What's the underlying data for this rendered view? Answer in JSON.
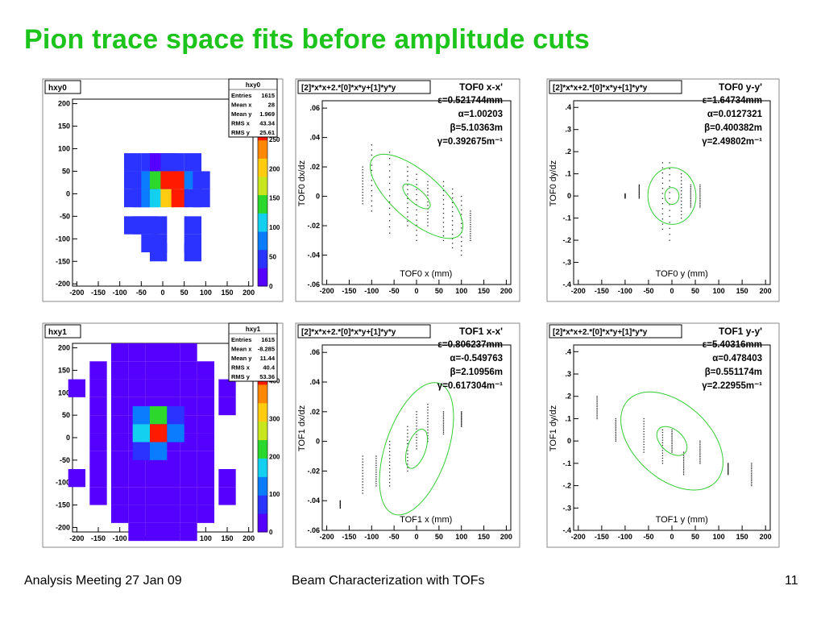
{
  "slide": {
    "title": "Pion trace space fits before amplitude cuts",
    "footer_left": "Analysis Meeting 27 Jan 09",
    "footer_center": "Beam Characterization with TOFs",
    "footer_right": "11"
  },
  "colors": {
    "title": "#1cc41c",
    "ellipse": "#33cc33",
    "palette": [
      "#5500ff",
      "#2a33ff",
      "#0a7dff",
      "#14d0f0",
      "#2bd82b",
      "#c8e61e",
      "#ffcc11",
      "#ff8800",
      "#ff1a00"
    ]
  },
  "chart_data": [
    {
      "type": "heatmap",
      "name": "hxy0",
      "stats": {
        "title": "hxy0",
        "rows": [
          [
            "Entries",
            "1615"
          ],
          [
            "Mean x",
            "28"
          ],
          [
            "Mean y",
            "1.969"
          ],
          [
            "RMS x",
            "43.34"
          ],
          [
            "RMS y",
            "25.61"
          ]
        ]
      },
      "xlim": [
        -210,
        210
      ],
      "ylim": [
        -205,
        210
      ],
      "xticks": [
        -200,
        -150,
        -100,
        -50,
        0,
        50,
        100,
        150,
        200
      ],
      "yticks": [
        -200,
        -150,
        -100,
        -50,
        0,
        50,
        100,
        150,
        200
      ],
      "bin": 50,
      "zmax": 280,
      "zticks": [
        0,
        50,
        100,
        150,
        200,
        250
      ],
      "cells": [
        [
          -70,
          70,
          40
        ],
        [
          -30,
          70,
          40
        ],
        [
          -10,
          70,
          30
        ],
        [
          15,
          70,
          40
        ],
        [
          30,
          70,
          40
        ],
        [
          70,
          70,
          40
        ],
        [
          -70,
          30,
          40
        ],
        [
          -50,
          30,
          60
        ],
        [
          -30,
          30,
          70
        ],
        [
          -10,
          30,
          130
        ],
        [
          15,
          30,
          260
        ],
        [
          40,
          30,
          270
        ],
        [
          70,
          30,
          80
        ],
        [
          90,
          30,
          40
        ],
        [
          -70,
          -10,
          40
        ],
        [
          -50,
          -10,
          60
        ],
        [
          -30,
          -10,
          70
        ],
        [
          -10,
          -10,
          120
        ],
        [
          15,
          -10,
          210
        ],
        [
          40,
          -10,
          270
        ],
        [
          70,
          -10,
          60
        ],
        [
          90,
          -10,
          40
        ],
        [
          -70,
          -70,
          40
        ],
        [
          -50,
          -70,
          40
        ],
        [
          -30,
          -70,
          40
        ],
        [
          -10,
          -70,
          40
        ],
        [
          70,
          -70,
          40
        ],
        [
          -30,
          -110,
          40
        ],
        [
          -10,
          -110,
          40
        ],
        [
          70,
          -110,
          40
        ],
        [
          70,
          -130,
          40
        ],
        [
          -10,
          -130,
          40
        ]
      ],
      "cells_note": ""
    },
    {
      "type": "heatmap",
      "name": "hxy1",
      "stats": {
        "title": "hxy1",
        "rows": [
          [
            "Entries",
            "1615"
          ],
          [
            "Mean x",
            "-8.285"
          ],
          [
            "Mean y",
            "11.44"
          ],
          [
            "RMS x",
            "40.4"
          ],
          [
            "RMS y",
            "53.36"
          ]
        ]
      },
      "xlim": [
        -210,
        210
      ],
      "ylim": [
        -210,
        210
      ],
      "xticks": [
        -200,
        -150,
        -100,
        -50,
        0,
        50,
        100,
        150,
        200
      ],
      "yticks": [
        -200,
        -150,
        -100,
        -50,
        0,
        50,
        100,
        150,
        200
      ],
      "zmax": 440,
      "zticks": [
        0,
        100,
        200,
        300,
        400
      ],
      "cells": [
        [
          -100,
          190,
          20
        ],
        [
          -60,
          190,
          20
        ],
        [
          -20,
          190,
          20
        ],
        [
          20,
          190,
          20
        ],
        [
          60,
          190,
          20
        ],
        [
          -150,
          150,
          20
        ],
        [
          -100,
          150,
          20
        ],
        [
          -60,
          150,
          20
        ],
        [
          -20,
          150,
          20
        ],
        [
          20,
          150,
          20
        ],
        [
          60,
          150,
          20
        ],
        [
          100,
          150,
          20
        ],
        [
          -200,
          110,
          20
        ],
        [
          -150,
          110,
          20
        ],
        [
          -100,
          110,
          20
        ],
        [
          -60,
          110,
          20
        ],
        [
          -20,
          110,
          20
        ],
        [
          20,
          110,
          20
        ],
        [
          60,
          110,
          20
        ],
        [
          100,
          110,
          20
        ],
        [
          150,
          110,
          20
        ],
        [
          -150,
          70,
          20
        ],
        [
          -100,
          70,
          20
        ],
        [
          -60,
          70,
          20
        ],
        [
          -20,
          70,
          20
        ],
        [
          20,
          70,
          20
        ],
        [
          60,
          70,
          20
        ],
        [
          100,
          70,
          20
        ],
        [
          150,
          70,
          20
        ],
        [
          -150,
          30,
          20
        ],
        [
          -100,
          30,
          20
        ],
        [
          -60,
          30,
          20
        ],
        [
          -20,
          30,
          20
        ],
        [
          20,
          30,
          20
        ],
        [
          60,
          30,
          20
        ],
        [
          100,
          30,
          20
        ],
        [
          -150,
          -10,
          20
        ],
        [
          -100,
          -10,
          20
        ],
        [
          -60,
          -10,
          20
        ],
        [
          -20,
          -10,
          20
        ],
        [
          20,
          -10,
          20
        ],
        [
          60,
          -10,
          20
        ],
        [
          100,
          -10,
          20
        ],
        [
          -150,
          -50,
          20
        ],
        [
          -100,
          -50,
          20
        ],
        [
          -60,
          -50,
          20
        ],
        [
          -20,
          -50,
          20
        ],
        [
          20,
          -50,
          20
        ],
        [
          60,
          -50,
          20
        ],
        [
          100,
          -50,
          20
        ],
        [
          -200,
          -90,
          20
        ],
        [
          -150,
          -90,
          20
        ],
        [
          -100,
          -90,
          20
        ],
        [
          -60,
          -90,
          20
        ],
        [
          -20,
          -90,
          20
        ],
        [
          20,
          -90,
          20
        ],
        [
          60,
          -90,
          20
        ],
        [
          100,
          -90,
          20
        ],
        [
          150,
          -90,
          20
        ],
        [
          -150,
          -130,
          20
        ],
        [
          -100,
          -130,
          20
        ],
        [
          -60,
          -130,
          20
        ],
        [
          -20,
          -130,
          20
        ],
        [
          20,
          -130,
          20
        ],
        [
          60,
          -130,
          20
        ],
        [
          100,
          -130,
          20
        ],
        [
          150,
          -130,
          20
        ],
        [
          -100,
          -170,
          20
        ],
        [
          -60,
          -170,
          20
        ],
        [
          -20,
          -170,
          20
        ],
        [
          20,
          -170,
          20
        ],
        [
          60,
          -170,
          20
        ],
        [
          100,
          -170,
          20
        ],
        [
          -60,
          -210,
          20
        ],
        [
          -20,
          -210,
          20
        ],
        [
          20,
          -210,
          20
        ],
        [
          60,
          -210,
          20
        ]
      ],
      "hot": [
        [
          -50,
          50,
          110
        ],
        [
          -10,
          50,
          230
        ],
        [
          30,
          50,
          70
        ],
        [
          -50,
          10,
          180
        ],
        [
          -10,
          10,
          420
        ],
        [
          30,
          10,
          100
        ],
        [
          -50,
          -30,
          60
        ],
        [
          -10,
          -30,
          100
        ]
      ]
    },
    {
      "type": "scatter",
      "name": "TOF0 x-x'",
      "header": "[2]*x*x+2.*[0]*x*y+[1]*y*y",
      "fit_title": "TOF0 x-x'",
      "params": [
        "ε=0.521744mm",
        "α=1.00203",
        "β=5.10363m",
        "γ=0.392675m⁻¹"
      ],
      "xlabel": "TOF0 x (mm)",
      "ylabel": "TOF0 dx/dz",
      "xlim": [
        -210,
        210
      ],
      "ylim": [
        -0.06,
        0.065
      ],
      "xticks": [
        -200,
        -150,
        -100,
        -50,
        0,
        50,
        100,
        150,
        200
      ],
      "yticks": [
        -0.06,
        -0.04,
        -0.02,
        0,
        0.02,
        0.04,
        0.06
      ],
      "epsilon": 0.521744,
      "alpha": 1.00203,
      "beta": 5.10363,
      "gamma": 0.392675,
      "center": [
        0,
        0
      ],
      "columns": [
        [
          -120,
          -0.005,
          0.02
        ],
        [
          -100,
          -0.01,
          0.035
        ],
        [
          -60,
          -0.025,
          0.03
        ],
        [
          -20,
          -0.02,
          0.02
        ],
        [
          0,
          -0.03,
          0.015
        ],
        [
          25,
          -0.02,
          0.01
        ],
        [
          60,
          -0.03,
          0.01
        ],
        [
          80,
          -0.035,
          0.005
        ],
        [
          100,
          -0.04,
          0.0
        ],
        [
          120,
          -0.03,
          -0.01
        ]
      ]
    },
    {
      "type": "scatter",
      "name": "TOF0 y-y'",
      "header": "[2]*x*x+2.*[0]*x*y+[1]*y*y",
      "fit_title": "TOF0 y-y'",
      "params": [
        "ε=1.64734mm",
        "α=0.0127321",
        "β=0.400382m",
        "γ=2.49802m⁻¹"
      ],
      "xlabel": "TOF0 y (mm)",
      "ylabel": "TOF0 dy/dz",
      "xlim": [
        -210,
        210
      ],
      "ylim": [
        -0.4,
        0.43
      ],
      "xticks": [
        -200,
        -150,
        -100,
        -50,
        0,
        50,
        100,
        150,
        200
      ],
      "yticks": [
        -0.4,
        -0.3,
        -0.2,
        -0.1,
        0,
        0.1,
        0.2,
        0.3,
        0.4
      ],
      "epsilon": 1.64734,
      "alpha": 0.0127321,
      "beta": 0.400382,
      "gamma": 2.49802,
      "center": [
        0,
        0
      ],
      "columns": [
        [
          -100,
          -0.01,
          0.01
        ],
        [
          -70,
          -0.01,
          0.05
        ],
        [
          -20,
          -0.15,
          0.15
        ],
        [
          -5,
          -0.2,
          0.15
        ],
        [
          20,
          -0.1,
          0.1
        ],
        [
          40,
          -0.05,
          0.05
        ],
        [
          60,
          -0.05,
          0.05
        ]
      ]
    },
    {
      "type": "scatter",
      "name": "TOF1 x-x'",
      "header": "[2]*x*x+2.*[0]*x*y+[1]*y*y",
      "fit_title": "TOF1 x-x'",
      "params": [
        "ε=0.806237mm",
        "α=-0.549763",
        "β=2.10956m",
        "γ=0.617304m⁻¹"
      ],
      "xlabel": "TOF1 x (mm)",
      "ylabel": "TOF1 dx/dz",
      "xlim": [
        -210,
        210
      ],
      "ylim": [
        -0.06,
        0.065
      ],
      "xticks": [
        -200,
        -150,
        -100,
        -50,
        0,
        50,
        100,
        150,
        200
      ],
      "yticks": [
        -0.06,
        -0.04,
        -0.02,
        0,
        0.02,
        0.04,
        0.06
      ],
      "epsilon": 0.806237,
      "alpha": -0.549763,
      "beta": 2.10956,
      "gamma": 0.617304,
      "center": [
        0,
        -0.005
      ],
      "columns": [
        [
          -170,
          -0.045,
          -0.04
        ],
        [
          -120,
          -0.035,
          -0.01
        ],
        [
          -90,
          -0.03,
          -0.01
        ],
        [
          -60,
          -0.03,
          0.0
        ],
        [
          -20,
          -0.02,
          0.01
        ],
        [
          0,
          -0.005,
          0.02
        ],
        [
          25,
          0.0,
          0.025
        ],
        [
          60,
          0.005,
          0.02
        ],
        [
          100,
          0.01,
          0.02
        ]
      ]
    },
    {
      "type": "scatter",
      "name": "TOF1 y-y'",
      "header": "[2]*x*x+2.*[0]*x*y+[1]*y*y",
      "fit_title": "TOF1 y-y'",
      "params": [
        "ε=5.40316mm",
        "α=0.478403",
        "β=0.551174m",
        "γ=2.22955m⁻¹"
      ],
      "xlabel": "TOF1 y (mm)",
      "ylabel": "TOF1 dy/dz",
      "xlim": [
        -210,
        210
      ],
      "ylim": [
        -0.4,
        0.43
      ],
      "xticks": [
        -200,
        -150,
        -100,
        -50,
        0,
        50,
        100,
        150,
        200
      ],
      "yticks": [
        -0.4,
        -0.3,
        -0.2,
        -0.1,
        0,
        0.1,
        0.2,
        0.3,
        0.4
      ],
      "epsilon": 5.40316,
      "alpha": 0.478403,
      "beta": 0.551174,
      "gamma": 2.22955,
      "center": [
        0,
        0
      ],
      "columns": [
        [
          -160,
          0.1,
          0.2
        ],
        [
          -120,
          0.0,
          0.1
        ],
        [
          -60,
          -0.05,
          0.1
        ],
        [
          -20,
          -0.1,
          0.05
        ],
        [
          0,
          -0.05,
          0.05
        ],
        [
          25,
          -0.15,
          -0.05
        ],
        [
          60,
          -0.1,
          0.0
        ],
        [
          120,
          -0.15,
          -0.1
        ],
        [
          170,
          -0.2,
          -0.1
        ]
      ]
    }
  ]
}
